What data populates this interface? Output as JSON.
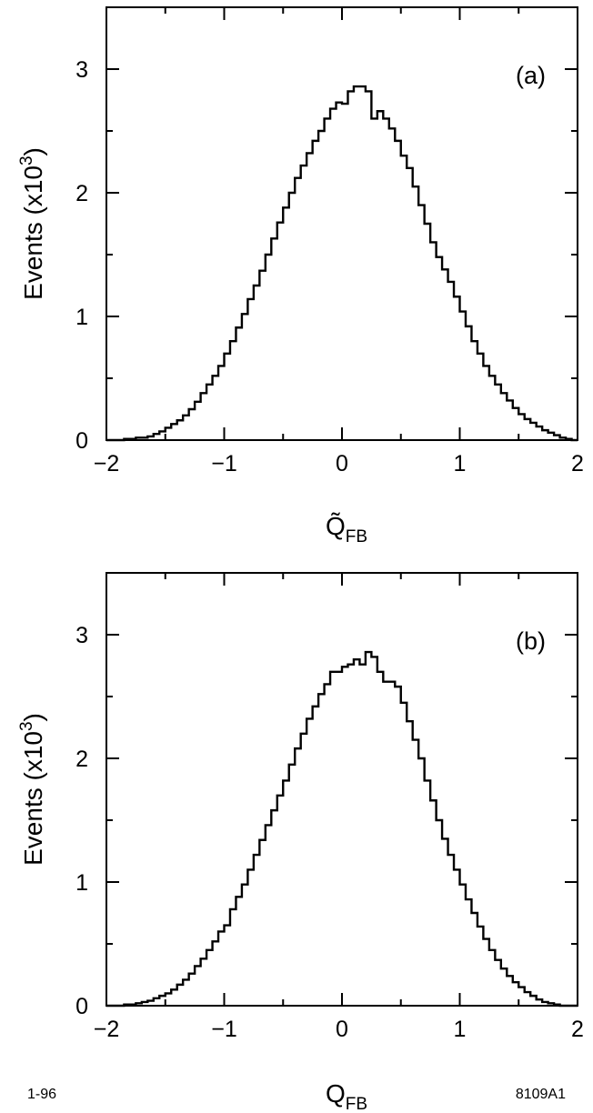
{
  "chart_data": [
    {
      "type": "line",
      "panel_label": "(a)",
      "xlabel": {
        "main": "Q̃",
        "sub": "FB"
      },
      "ylabel": {
        "main": "Events (x10",
        "sup": "3",
        "end": ")"
      },
      "xlim": [
        -2,
        2
      ],
      "ylim": [
        0,
        3.5
      ],
      "xticks": [
        -2,
        -1,
        0,
        1,
        2
      ],
      "xtick_labels": [
        "−2",
        "−1",
        "0",
        "1",
        "2"
      ],
      "yticks": [
        0,
        1,
        2,
        3
      ],
      "ytick_labels": [
        "0",
        "1",
        "2",
        "3"
      ],
      "bin_width": 0.05,
      "x_start": -2.0,
      "values": [
        0.0,
        0.0,
        0.0,
        0.01,
        0.01,
        0.02,
        0.02,
        0.03,
        0.05,
        0.07,
        0.1,
        0.13,
        0.16,
        0.2,
        0.25,
        0.31,
        0.38,
        0.45,
        0.52,
        0.6,
        0.7,
        0.8,
        0.91,
        1.02,
        1.14,
        1.25,
        1.37,
        1.5,
        1.63,
        1.76,
        1.88,
        2.0,
        2.12,
        2.22,
        2.32,
        2.42,
        2.5,
        2.6,
        2.68,
        2.73,
        2.72,
        2.82,
        2.86,
        2.86,
        2.82,
        2.6,
        2.66,
        2.6,
        2.52,
        2.42,
        2.3,
        2.2,
        2.05,
        1.9,
        1.75,
        1.6,
        1.48,
        1.38,
        1.28,
        1.16,
        1.04,
        0.92,
        0.8,
        0.7,
        0.6,
        0.52,
        0.45,
        0.38,
        0.32,
        0.26,
        0.21,
        0.17,
        0.14,
        0.11,
        0.08,
        0.06,
        0.04,
        0.02,
        0.01,
        0.0
      ]
    },
    {
      "type": "line",
      "panel_label": "(b)",
      "xlabel": {
        "main": "Q",
        "sub": "FB"
      },
      "ylabel": {
        "main": "Events (x10",
        "sup": "3",
        "end": ")"
      },
      "xlim": [
        -2,
        2
      ],
      "ylim": [
        0,
        3.5
      ],
      "xticks": [
        -2,
        -1,
        0,
        1,
        2
      ],
      "xtick_labels": [
        "−2",
        "−1",
        "0",
        "1",
        "2"
      ],
      "yticks": [
        0,
        1,
        2,
        3
      ],
      "ytick_labels": [
        "0",
        "1",
        "2",
        "3"
      ],
      "bin_width": 0.05,
      "x_start": -2.0,
      "values": [
        0.0,
        0.0,
        0.0,
        0.01,
        0.01,
        0.02,
        0.03,
        0.04,
        0.06,
        0.08,
        0.1,
        0.13,
        0.17,
        0.21,
        0.26,
        0.32,
        0.38,
        0.45,
        0.52,
        0.6,
        0.65,
        0.78,
        0.88,
        0.98,
        1.1,
        1.22,
        1.34,
        1.46,
        1.58,
        1.7,
        1.82,
        1.95,
        2.08,
        2.2,
        2.32,
        2.42,
        2.52,
        2.6,
        2.7,
        2.7,
        2.74,
        2.76,
        2.8,
        2.76,
        2.86,
        2.82,
        2.7,
        2.62,
        2.62,
        2.58,
        2.45,
        2.3,
        2.15,
        2.0,
        1.82,
        1.66,
        1.5,
        1.35,
        1.22,
        1.1,
        0.98,
        0.86,
        0.75,
        0.64,
        0.54,
        0.45,
        0.37,
        0.3,
        0.24,
        0.19,
        0.15,
        0.11,
        0.08,
        0.05,
        0.03,
        0.02,
        0.01,
        0.0,
        0.0,
        0.0
      ]
    }
  ],
  "footer": {
    "left": "1-96",
    "right": "8109A1"
  }
}
